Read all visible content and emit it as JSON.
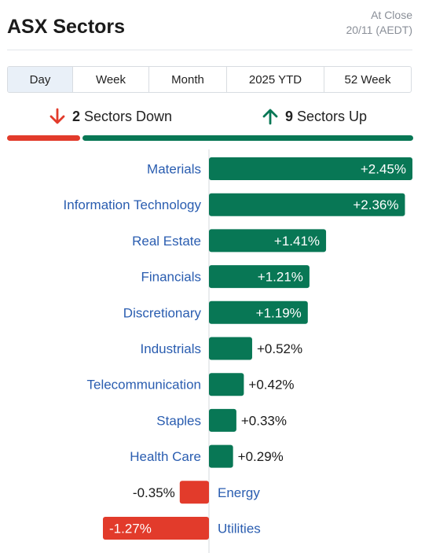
{
  "header": {
    "title": "ASX Sectors",
    "as_of_line1": "At Close",
    "as_of_line2": "20/11 (AEDT)"
  },
  "tabs": [
    {
      "label": "Day",
      "active": true
    },
    {
      "label": "Week",
      "active": false
    },
    {
      "label": "Month",
      "active": false
    },
    {
      "label": "2025 YTD",
      "active": false
    },
    {
      "label": "52 Week",
      "active": false
    }
  ],
  "summary": {
    "down_count": "2",
    "down_label": "Sectors Down",
    "up_count": "9",
    "up_label": "Sectors Up"
  },
  "colors": {
    "up": "#087755",
    "down": "#e23b2b",
    "label": "#2a5db0",
    "active_tab": "#e9f0f8"
  },
  "chart_data": {
    "type": "bar",
    "orientation": "horizontal",
    "categories": [
      "Materials",
      "Information Technology",
      "Real Estate",
      "Financials",
      "Discretionary",
      "Industrials",
      "Telecommunication",
      "Staples",
      "Health Care",
      "Energy",
      "Utilities"
    ],
    "values": [
      2.45,
      2.36,
      1.41,
      1.21,
      1.19,
      0.52,
      0.42,
      0.33,
      0.29,
      -0.35,
      -1.27
    ],
    "value_labels": [
      "+2.45%",
      "+2.36%",
      "+1.41%",
      "+1.21%",
      "+1.19%",
      "+0.52%",
      "+0.42%",
      "+0.33%",
      "+0.29%",
      "-0.35%",
      "-1.27%"
    ],
    "unit": "%",
    "xlim": [
      -1.27,
      2.45
    ]
  }
}
